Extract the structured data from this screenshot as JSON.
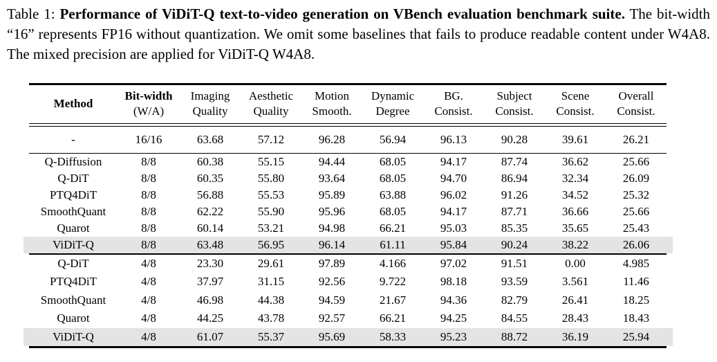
{
  "caption": {
    "label": "Table 1: ",
    "title": "Performance of ViDiT-Q text-to-video generation on VBench evaluation benchmark suite.",
    "body": " The bit-width “16” represents FP16 without quantization. We omit some baselines that fails to produce readable content under W4A8. The mixed precision are applied for ViDiT-Q W4A8."
  },
  "table": {
    "highlight_color": "#e4e4e4",
    "columns": [
      {
        "line1": "Method",
        "line2": "",
        "bold1": true,
        "bold2": false
      },
      {
        "line1": "Bit-width",
        "line2": "(W/A)",
        "bold1": true,
        "bold2": false
      },
      {
        "line1": "Imaging",
        "line2": "Quality",
        "bold1": false,
        "bold2": false
      },
      {
        "line1": "Aesthetic",
        "line2": "Quality",
        "bold1": false,
        "bold2": false
      },
      {
        "line1": "Motion",
        "line2": "Smooth.",
        "bold1": false,
        "bold2": false
      },
      {
        "line1": "Dynamic",
        "line2": "Degree",
        "bold1": false,
        "bold2": false
      },
      {
        "line1": "BG.",
        "line2": "Consist.",
        "bold1": false,
        "bold2": false
      },
      {
        "line1": "Subject",
        "line2": "Consist.",
        "bold1": false,
        "bold2": false
      },
      {
        "line1": "Scene",
        "line2": "Consist.",
        "bold1": false,
        "bold2": false
      },
      {
        "line1": "Overall",
        "line2": "Consist.",
        "bold1": false,
        "bold2": false
      }
    ],
    "groups": [
      {
        "rows": [
          {
            "method": "-",
            "bitwidth": "16/16",
            "values": [
              "63.68",
              "57.12",
              "96.28",
              "56.94",
              "96.13",
              "90.28",
              "39.61",
              "26.21"
            ],
            "highlight": false
          }
        ]
      },
      {
        "rows": [
          {
            "method": "Q-Diffusion",
            "bitwidth": "8/8",
            "values": [
              "60.38",
              "55.15",
              "94.44",
              "68.05",
              "94.17",
              "87.74",
              "36.62",
              "25.66"
            ],
            "highlight": false
          },
          {
            "method": "Q-DiT",
            "bitwidth": "8/8",
            "values": [
              "60.35",
              "55.80",
              "93.64",
              "68.05",
              "94.70",
              "86.94",
              "32.34",
              "26.09"
            ],
            "highlight": false
          },
          {
            "method": "PTQ4DiT",
            "bitwidth": "8/8",
            "values": [
              "56.88",
              "55.53",
              "95.89",
              "63.88",
              "96.02",
              "91.26",
              "34.52",
              "25.32"
            ],
            "highlight": false
          },
          {
            "method": "SmoothQuant",
            "bitwidth": "8/8",
            "values": [
              "62.22",
              "55.90",
              "95.96",
              "68.05",
              "94.17",
              "87.71",
              "36.66",
              "25.66"
            ],
            "highlight": false
          },
          {
            "method": "Quarot",
            "bitwidth": "8/8",
            "values": [
              "60.14",
              "53.21",
              "94.98",
              "66.21",
              "95.03",
              "85.35",
              "35.65",
              "25.43"
            ],
            "highlight": false
          },
          {
            "method": "ViDiT-Q",
            "bitwidth": "8/8",
            "values": [
              "63.48",
              "56.95",
              "96.14",
              "61.11",
              "95.84",
              "90.24",
              "38.22",
              "26.06"
            ],
            "highlight": true
          }
        ]
      },
      {
        "rows": [
          {
            "method": "Q-DiT",
            "bitwidth": "4/8",
            "values": [
              "23.30",
              "29.61",
              "97.89",
              "4.166",
              "97.02",
              "91.51",
              "0.00",
              "4.985"
            ],
            "highlight": false
          },
          {
            "method": "PTQ4DiT",
            "bitwidth": "4/8",
            "values": [
              "37.97",
              "31.15",
              "92.56",
              "9.722",
              "98.18",
              "93.59",
              "3.561",
              "11.46"
            ],
            "highlight": false
          },
          {
            "method": "SmoothQuant",
            "bitwidth": "4/8",
            "values": [
              "46.98",
              "44.38",
              "94.59",
              "21.67",
              "94.36",
              "82.79",
              "26.41",
              "18.25"
            ],
            "highlight": false
          },
          {
            "method": "Quarot",
            "bitwidth": "4/8",
            "values": [
              "44.25",
              "43.78",
              "92.57",
              "66.21",
              "94.25",
              "84.55",
              "28.43",
              "18.43"
            ],
            "highlight": false
          },
          {
            "method": "ViDiT-Q",
            "bitwidth": "4/8",
            "values": [
              "61.07",
              "55.37",
              "95.69",
              "58.33",
              "95.23",
              "88.72",
              "36.19",
              "25.94"
            ],
            "highlight": true
          }
        ]
      }
    ]
  }
}
